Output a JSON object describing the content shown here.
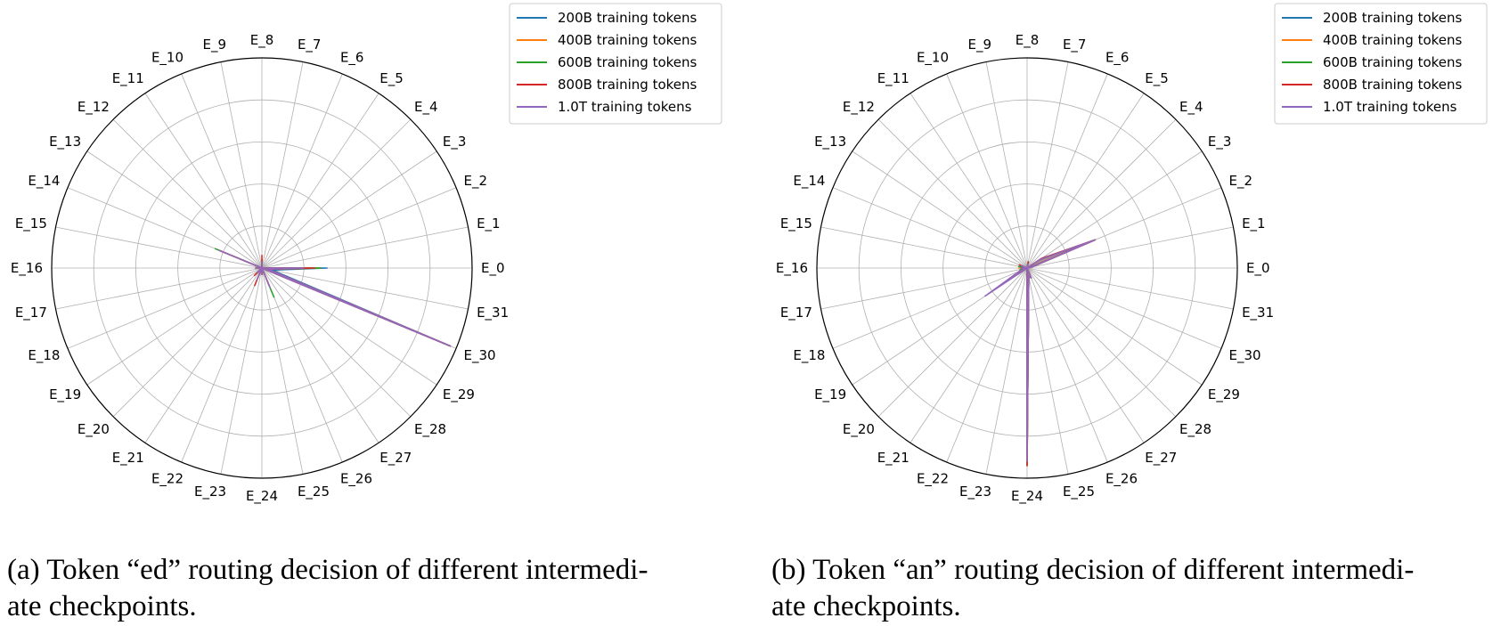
{
  "chart_data": [
    {
      "type": "radar",
      "expert_labels": [
        "E_0",
        "E_1",
        "E_2",
        "E_3",
        "E_4",
        "E_5",
        "E_6",
        "E_7",
        "E_8",
        "E_9",
        "E_10",
        "E_11",
        "E_12",
        "E_13",
        "E_14",
        "E_15",
        "E_16",
        "E_17",
        "E_18",
        "E_19",
        "E_20",
        "E_21",
        "E_22",
        "E_23",
        "E_24",
        "E_25",
        "E_26",
        "E_27",
        "E_28",
        "E_29",
        "E_30",
        "E_31"
      ],
      "rlim": [
        0,
        1
      ],
      "grid": true,
      "legend_location": "upper right, outside",
      "series": [
        {
          "name": "200B training tokens",
          "color": "#1f77b4",
          "values": [
            0.31,
            0,
            0,
            0,
            0,
            0,
            0,
            0,
            0.02,
            0,
            0,
            0,
            0,
            0,
            0,
            0,
            0,
            0,
            0,
            0,
            0,
            0,
            0,
            0,
            0.02,
            0.02,
            0,
            0,
            0,
            0,
            0.97,
            0.05
          ]
        },
        {
          "name": "400B training tokens",
          "color": "#ff7f0e",
          "values": [
            0.28,
            0,
            0,
            0,
            0,
            0,
            0,
            0,
            0.04,
            0,
            0,
            0,
            0,
            0,
            0.22,
            0,
            0.03,
            0,
            0,
            0,
            0.04,
            0,
            0.07,
            0,
            0.03,
            0,
            0.09,
            0,
            0,
            0,
            0.97,
            0.03
          ]
        },
        {
          "name": "600B training tokens",
          "color": "#2ca02c",
          "values": [
            0.28,
            0,
            0,
            0,
            0,
            0,
            0,
            0,
            0.03,
            0,
            0,
            0,
            0,
            0,
            0.24,
            0,
            0.03,
            0,
            0,
            0,
            0.04,
            0,
            0.06,
            0,
            0.03,
            0,
            0.15,
            0,
            0,
            0,
            0.97,
            0.03
          ]
        },
        {
          "name": "800B training tokens",
          "color": "#d62728",
          "values": [
            0.25,
            0,
            0,
            0,
            0,
            0,
            0,
            0,
            0.06,
            0,
            0,
            0,
            0,
            0,
            0.21,
            0,
            0.03,
            0,
            0,
            0,
            0.05,
            0,
            0.09,
            0,
            0.03,
            0,
            0.09,
            0,
            0,
            0,
            0.97,
            0.03
          ]
        },
        {
          "name": "1.0T training tokens",
          "color": "#9467bd",
          "values": [
            0.2,
            0,
            0,
            0,
            0,
            0,
            0,
            0,
            0.03,
            0,
            0,
            0,
            0,
            0,
            0.22,
            0,
            0.03,
            0,
            0,
            0,
            0.03,
            0,
            0.06,
            0,
            0.03,
            0,
            0.1,
            0,
            0,
            0,
            0.97,
            0.03
          ]
        }
      ]
    },
    {
      "type": "radar",
      "expert_labels": [
        "E_0",
        "E_1",
        "E_2",
        "E_3",
        "E_4",
        "E_5",
        "E_6",
        "E_7",
        "E_8",
        "E_9",
        "E_10",
        "E_11",
        "E_12",
        "E_13",
        "E_14",
        "E_15",
        "E_16",
        "E_17",
        "E_18",
        "E_19",
        "E_20",
        "E_21",
        "E_22",
        "E_23",
        "E_24",
        "E_25",
        "E_26",
        "E_27",
        "E_28",
        "E_29",
        "E_30",
        "E_31"
      ],
      "rlim": [
        0,
        1
      ],
      "grid": true,
      "legend_location": "upper right, outside",
      "series": [
        {
          "name": "200B training tokens",
          "color": "#1f77b4",
          "values": [
            0,
            0.02,
            0.35,
            0.08,
            0,
            0,
            0,
            0.02,
            0,
            0,
            0,
            0,
            0,
            0,
            0,
            0.04,
            0,
            0.03,
            0.04,
            0.05,
            0,
            0,
            0,
            0,
            0.94,
            0.04,
            0.05,
            0,
            0,
            0,
            0,
            0
          ]
        },
        {
          "name": "400B training tokens",
          "color": "#ff7f0e",
          "values": [
            0,
            0.02,
            0.35,
            0.07,
            0,
            0,
            0,
            0.03,
            0,
            0,
            0,
            0,
            0,
            0,
            0.03,
            0,
            0.04,
            0,
            0.04,
            0.04,
            0,
            0,
            0,
            0,
            0.94,
            0.04,
            0.05,
            0,
            0,
            0,
            0,
            0
          ]
        },
        {
          "name": "600B training tokens",
          "color": "#2ca02c",
          "values": [
            0,
            0.02,
            0.35,
            0.07,
            0,
            0,
            0,
            0.03,
            0,
            0,
            0,
            0,
            0,
            0,
            0,
            0.04,
            0,
            0.03,
            0.04,
            0.05,
            0,
            0,
            0,
            0,
            0.94,
            0.04,
            0.05,
            0,
            0,
            0,
            0,
            0
          ]
        },
        {
          "name": "800B training tokens",
          "color": "#d62728",
          "values": [
            0,
            0.02,
            0.35,
            0.08,
            0,
            0,
            0,
            0.03,
            0,
            0,
            0,
            0,
            0,
            0,
            0.04,
            0,
            0.03,
            0,
            0.04,
            0.05,
            0,
            0,
            0,
            0,
            0.94,
            0.04,
            0.05,
            0,
            0,
            0,
            0,
            0
          ]
        },
        {
          "name": "1.0T training tokens",
          "color": "#9467bd",
          "values": [
            0,
            0.02,
            0.35,
            0.07,
            0,
            0,
            0,
            0.02,
            0,
            0,
            0,
            0,
            0,
            0,
            0.03,
            0,
            0.03,
            0,
            0.04,
            0.24,
            0,
            0,
            0,
            0,
            0.92,
            0.04,
            0.05,
            0,
            0,
            0,
            0,
            0
          ]
        }
      ]
    }
  ],
  "captions": {
    "a_line1": "(a) Token “ed” routing decision of different intermedi-",
    "a_line2": "ate checkpoints.",
    "b_line1": "(b) Token “an” routing decision of different intermedi-",
    "b_line2": "ate checkpoints."
  }
}
